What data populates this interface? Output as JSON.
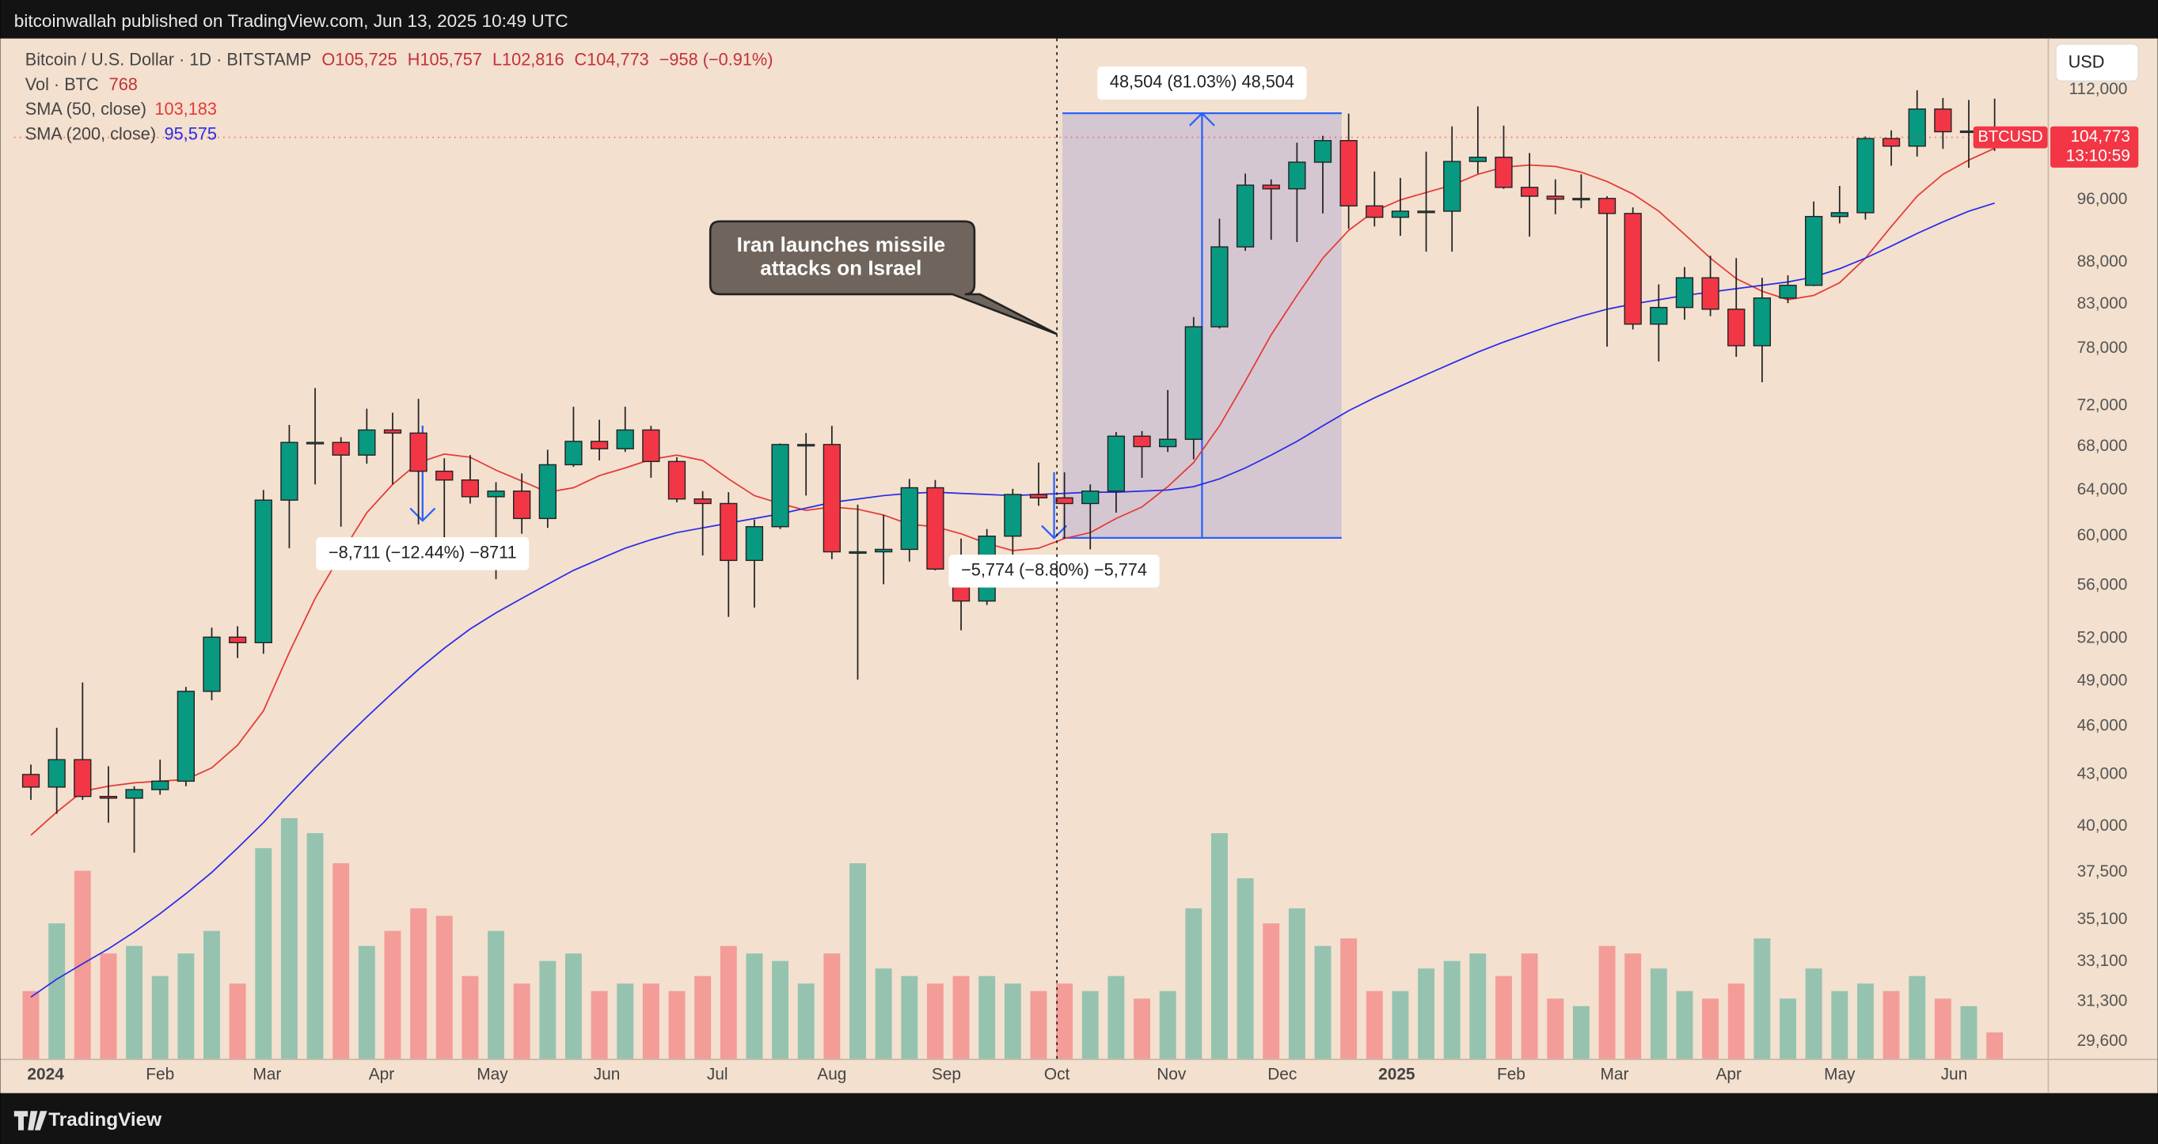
{
  "published": "bitcoinwallah published on TradingView.com, Jun 13, 2025 10:49 UTC",
  "brand": "TradingView",
  "chart_data": {
    "type": "candlestick",
    "legend": {
      "symbol": "Bitcoin / U.S. Dollar · 1D · BITSTAMP",
      "open": "O105,725",
      "high": "H105,757",
      "low": "L102,816",
      "close": "C104,773",
      "change": "−958 (−0.91%)",
      "volume_name": "Vol · BTC",
      "volume_value": "768"
    },
    "currency": "USD",
    "ticker": "BTCUSD",
    "last_price_label": "104,773",
    "countdown": "13:10:59",
    "log_scale": true,
    "grid": false,
    "up_color": "#089981",
    "down_color": "#f23645",
    "xlim": [
      -0.65,
      78.05
    ],
    "xticks": [
      {
        "value": 0.57,
        "label": "2024"
      },
      {
        "value": 5,
        "label": "Feb"
      },
      {
        "value": 9.14,
        "label": "Mar"
      },
      {
        "value": 13.57,
        "label": "Apr"
      },
      {
        "value": 17.86,
        "label": "May"
      },
      {
        "value": 22.29,
        "label": "Jun"
      },
      {
        "value": 26.57,
        "label": "Jul"
      },
      {
        "value": 31,
        "label": "Aug"
      },
      {
        "value": 35.43,
        "label": "Sep"
      },
      {
        "value": 39.71,
        "label": "Oct"
      },
      {
        "value": 44.14,
        "label": "Nov"
      },
      {
        "value": 48.43,
        "label": "Dec"
      },
      {
        "value": 52.86,
        "label": "2025"
      },
      {
        "value": 57.29,
        "label": "Feb"
      },
      {
        "value": 61.29,
        "label": "Mar"
      },
      {
        "value": 65.71,
        "label": "Apr"
      },
      {
        "value": 70,
        "label": "May"
      },
      {
        "value": 74.43,
        "label": "Jun"
      }
    ],
    "ylim": [
      28900,
      120300
    ],
    "yticks": [
      {
        "value": 112000,
        "label": "112,000"
      },
      {
        "value": 96000,
        "label": "96,000"
      },
      {
        "value": 88000,
        "label": "88,000"
      },
      {
        "value": 83000,
        "label": "83,000"
      },
      {
        "value": 78000,
        "label": "78,000"
      },
      {
        "value": 72000,
        "label": "72,000"
      },
      {
        "value": 68000,
        "label": "68,000"
      },
      {
        "value": 64000,
        "label": "64,000"
      },
      {
        "value": 60000,
        "label": "60,000"
      },
      {
        "value": 56000,
        "label": "56,000"
      },
      {
        "value": 52000,
        "label": "52,000"
      },
      {
        "value": 49000,
        "label": "49,000"
      },
      {
        "value": 46000,
        "label": "46,000"
      },
      {
        "value": 43000,
        "label": "43,000"
      },
      {
        "value": 40000,
        "label": "40,000"
      },
      {
        "value": 37500,
        "label": "37,500"
      },
      {
        "value": 35100,
        "label": "35,100"
      },
      {
        "value": 33100,
        "label": "33,100"
      },
      {
        "value": 31300,
        "label": "31,300"
      },
      {
        "value": 29600,
        "label": "29,600"
      }
    ],
    "open": [
      43000,
      42250,
      43900,
      41700,
      41600,
      42100,
      42600,
      48300,
      52100,
      51700,
      63100,
      68400,
      68400,
      67200,
      69600,
      69300,
      65700,
      64900,
      63400,
      63900,
      61500,
      66300,
      68500,
      67800,
      69600,
      66600,
      63200,
      62800,
      58000,
      60800,
      68200,
      68200,
      58700,
      58700,
      58900,
      64200,
      57300,
      54800,
      60000,
      63600,
      63300,
      62800,
      63900,
      69000,
      68000,
      68700,
      80400,
      89900,
      98000,
      97500,
      101200,
      104300,
      95200,
      93700,
      94500,
      94500,
      101300,
      101900,
      97700,
      96500,
      96100,
      96200,
      94200,
      80700,
      82600,
      86100,
      82400,
      78300,
      83700,
      85200,
      93800,
      94300,
      104600,
      103500,
      109000,
      105600,
      105700
    ],
    "high": [
      43600,
      45900,
      48900,
      43500,
      42300,
      43900,
      48600,
      52800,
      52900,
      64000,
      70100,
      73800,
      68900,
      71700,
      71300,
      72700,
      66900,
      67200,
      64700,
      65500,
      67700,
      71900,
      70600,
      71900,
      70000,
      67000,
      63900,
      63800,
      61400,
      68300,
      69300,
      70000,
      62700,
      61800,
      65000,
      64900,
      59800,
      60600,
      64100,
      66500,
      65600,
      64500,
      69400,
      69500,
      73600,
      81500,
      93500,
      99600,
      98800,
      104000,
      105000,
      108300,
      99900,
      99000,
      102700,
      106400,
      109400,
      106500,
      102500,
      98800,
      99500,
      96500,
      95000,
      85300,
      87400,
      88800,
      88500,
      86100,
      86400,
      95800,
      97900,
      104900,
      105800,
      111900,
      110700,
      110400,
      110600
    ],
    "low": [
      41500,
      40700,
      41500,
      40200,
      38550,
      41800,
      42300,
      47700,
      50600,
      50900,
      59000,
      64500,
      60800,
      66400,
      64500,
      61000,
      59600,
      62800,
      56500,
      60200,
      60700,
      66100,
      66700,
      67500,
      65100,
      62900,
      58400,
      53600,
      54300,
      60600,
      63500,
      58100,
      49100,
      56100,
      57900,
      57200,
      52600,
      54500,
      57500,
      62600,
      59800,
      58900,
      62000,
      65100,
      67500,
      66800,
      80200,
      89400,
      90800,
      90500,
      94200,
      92200,
      92500,
      91300,
      89300,
      89300,
      99600,
      97500,
      91200,
      94100,
      94900,
      78200,
      80100,
      76600,
      81200,
      81600,
      77100,
      74400,
      83100,
      85100,
      92900,
      93400,
      100700,
      102000,
      103100,
      100400,
      102800
    ],
    "close": [
      42250,
      43900,
      41700,
      41600,
      42100,
      42600,
      48300,
      52100,
      51700,
      63100,
      68400,
      68400,
      67200,
      69600,
      69300,
      65700,
      64900,
      63400,
      63900,
      61500,
      66300,
      68500,
      67800,
      69600,
      66600,
      63200,
      62800,
      58000,
      60800,
      68200,
      68200,
      58700,
      58700,
      58900,
      64200,
      57300,
      54800,
      60000,
      63600,
      63300,
      62800,
      63900,
      69000,
      68000,
      68700,
      80400,
      89900,
      98000,
      97500,
      101200,
      104300,
      95200,
      93700,
      94500,
      94500,
      101300,
      101900,
      97700,
      96500,
      96100,
      96200,
      94200,
      80700,
      82600,
      86100,
      82400,
      78300,
      83700,
      85200,
      93800,
      94300,
      104600,
      103500,
      109000,
      105600,
      105700,
      104773
    ],
    "volume": [
      9000,
      18000,
      25000,
      14000,
      15000,
      11000,
      14000,
      17000,
      10000,
      28000,
      32000,
      30000,
      26000,
      15000,
      17000,
      20000,
      19000,
      11000,
      17000,
      10000,
      13000,
      14000,
      9000,
      10000,
      10000,
      9000,
      11000,
      15000,
      14000,
      13000,
      10000,
      14000,
      26000,
      12000,
      11000,
      10000,
      11000,
      11000,
      10000,
      9000,
      10000,
      9000,
      11000,
      8000,
      9000,
      20000,
      30000,
      24000,
      18000,
      20000,
      15000,
      16000,
      9000,
      9000,
      12000,
      13000,
      14000,
      11000,
      14000,
      8000,
      7000,
      15000,
      14000,
      12000,
      9000,
      8000,
      10000,
      16000,
      8000,
      12000,
      9000,
      10000,
      9000,
      11000,
      8000,
      7000,
      3500
    ],
    "series": [
      {
        "name": "SMA (50, close)",
        "legend_value": "103,183",
        "color": "#e53935",
        "values": [
          39500,
          40800,
          42000,
          42300,
          42500,
          42600,
          42700,
          43400,
          44800,
          47000,
          51000,
          55000,
          58500,
          62000,
          64500,
          66500,
          67300,
          67000,
          65800,
          64800,
          63800,
          64200,
          65300,
          66000,
          66800,
          67200,
          66700,
          65000,
          63500,
          62800,
          62200,
          62500,
          62300,
          61800,
          61000,
          60800,
          60200,
          59400,
          58800,
          59000,
          59800,
          60300,
          61500,
          62500,
          64300,
          66500,
          70000,
          74500,
          79500,
          84000,
          88500,
          92000,
          94500,
          96000,
          97000,
          98000,
          99500,
          100500,
          100800,
          100600,
          99800,
          98500,
          96800,
          94500,
          91500,
          88500,
          86000,
          84500,
          83500,
          84000,
          85500,
          88500,
          92500,
          96500,
          99500,
          101500,
          103183
        ]
      },
      {
        "name": "SMA (200, close)",
        "legend_value": "95,575",
        "color": "#2a2ae8",
        "values": [
          31500,
          32300,
          33000,
          33700,
          34500,
          35400,
          36400,
          37500,
          38800,
          40200,
          41800,
          43400,
          45000,
          46600,
          48200,
          49800,
          51300,
          52700,
          53900,
          55000,
          56100,
          57200,
          58100,
          59000,
          59700,
          60300,
          60700,
          61100,
          61500,
          61900,
          62400,
          62900,
          63200,
          63500,
          63700,
          63800,
          63700,
          63600,
          63500,
          63600,
          63700,
          63800,
          63800,
          63900,
          64000,
          64300,
          65000,
          66000,
          67200,
          68500,
          70000,
          71500,
          72800,
          74000,
          75200,
          76400,
          77600,
          78700,
          79700,
          80700,
          81600,
          82400,
          83000,
          83500,
          84000,
          84400,
          84800,
          85200,
          85600,
          86200,
          87200,
          88500,
          90000,
          91600,
          93100,
          94500,
          95575
        ]
      }
    ],
    "measurements": [
      {
        "label": "48,504 (81.03%) 48,504",
        "from": 59859,
        "to": 108363,
        "x": [
          39.92,
          50.73
        ]
      },
      {
        "label": "−8,711 (−12.44%) −8711",
        "from": 70024,
        "to": 61313,
        "x": [
          15.16,
          15.16
        ]
      },
      {
        "label": "−5,774 (−8.80%) −5,774",
        "from": 65614,
        "to": 59840,
        "x": [
          39.6,
          39.6
        ]
      }
    ],
    "event": {
      "label": [
        "Iran launches missile",
        "attacks on Israel"
      ],
      "x": 39.71
    }
  }
}
